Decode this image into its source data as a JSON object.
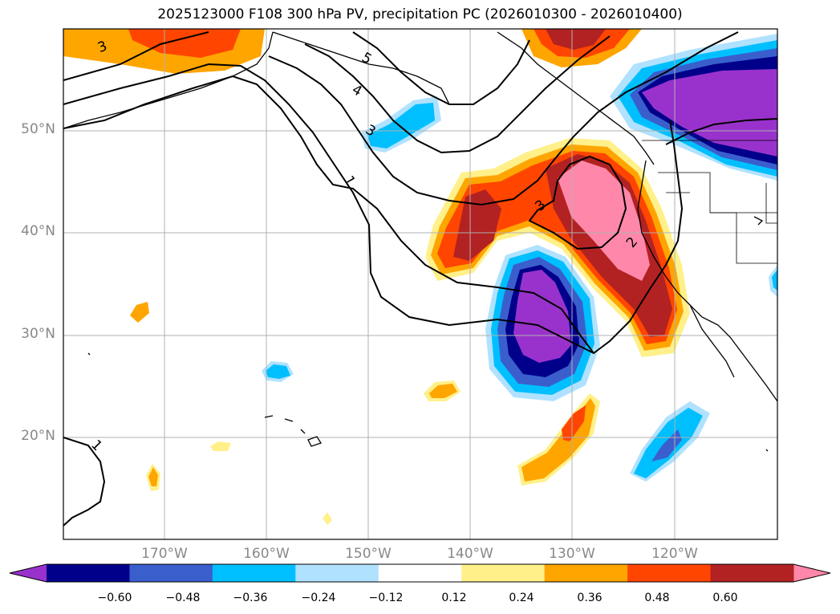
{
  "title": "2025123000 F108 300 hPa PV, precipitation PC (2026010300 - 2026010400)",
  "lat_ticks": [
    "50°N",
    "40°N",
    "30°N",
    "20°N"
  ],
  "lon_ticks": [
    "170°W",
    "160°W",
    "150°W",
    "140°W",
    "130°W",
    "120°W"
  ],
  "colorbar": {
    "labels": [
      "−0.60",
      "−0.48",
      "−0.36",
      "−0.24",
      "−0.12",
      "0.12",
      "0.24",
      "0.36",
      "0.48",
      "0.60"
    ],
    "colors": [
      "#9932cc",
      "#00008b",
      "#3a5fcd",
      "#00bfff",
      "#b0e2ff",
      "#ffffff",
      "#fff08a",
      "#ffa500",
      "#ff4500",
      "#b22222",
      "#ff88aa"
    ]
  },
  "contour_labels": [
    "5",
    "4",
    "3",
    "1",
    "3",
    "3",
    "2",
    "1"
  ]
}
